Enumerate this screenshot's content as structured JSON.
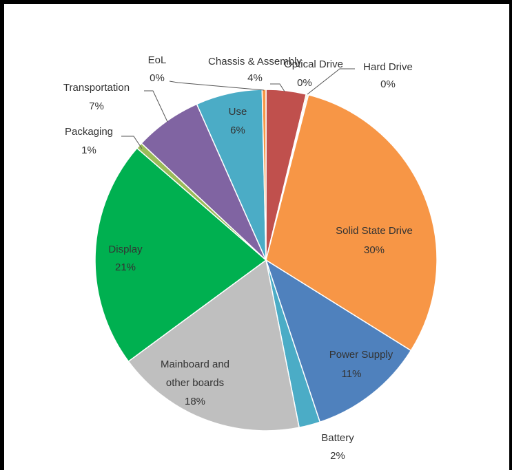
{
  "chart_data": {
    "type": "pie",
    "title": "",
    "labels": [
      "Chassis & Assembly",
      "Optical Drive",
      "Hard Drive",
      "Solid State Drive",
      "Power Supply",
      "Battery",
      "Mainboard and other boards",
      "Display",
      "Packaging",
      "Transportation",
      "Use",
      "EoL"
    ],
    "values": [
      4,
      0,
      0,
      30,
      11,
      2,
      18,
      21,
      1,
      7,
      6,
      0
    ],
    "display_values": [
      "4%",
      "0%",
      "0%",
      "30%",
      "11%",
      "2%",
      "18%",
      "21%",
      "1%",
      "7%",
      "6%",
      "0%"
    ],
    "colors": [
      "#c0504d",
      "#ffc000",
      "#a9a9a9",
      "#f79646",
      "#4f81bd",
      "#4bacc6",
      "#bfbfbf",
      "#00b050",
      "#9bbb59",
      "#8064a2",
      "#4bacc6",
      "#f79646"
    ],
    "start": "12 o'clock, clockwise",
    "legend": "none (data labels with leader lines)"
  }
}
